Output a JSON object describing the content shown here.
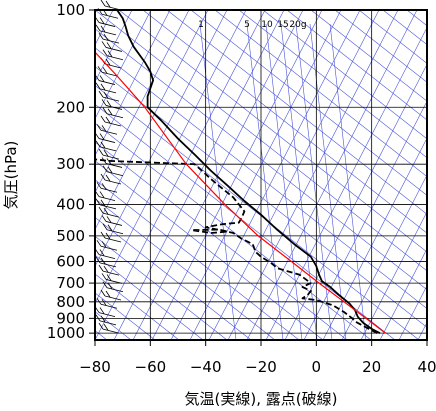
{
  "chart_data": {
    "type": "line",
    "title": "",
    "xlabel": "気温(実線), 露点(破線)",
    "ylabel": "気圧(hPa)",
    "xlim": [
      -80,
      40
    ],
    "ylim": [
      1050,
      100
    ],
    "y_scale": "log",
    "grid": true,
    "x_ticks": [
      -80,
      -60,
      -40,
      -20,
      0,
      20,
      40
    ],
    "y_ticks": [
      100,
      200,
      300,
      400,
      500,
      600,
      700,
      800,
      900,
      1000
    ],
    "mixing_ratio_labels": [
      {
        "text": "1",
        "value": 1
      },
      {
        "text": "5",
        "value": 5
      },
      {
        "text": "10",
        "value": 10
      },
      {
        "text": "15",
        "value": 15
      },
      {
        "text": "20g",
        "value": 20
      }
    ],
    "series": [
      {
        "name": "",
        "style": "solid",
        "color": "#000000",
        "points": [
          [
            23,
            1000
          ],
          [
            20,
            970
          ],
          [
            17,
            930
          ],
          [
            15,
            890
          ],
          [
            14,
            850
          ],
          [
            12,
            810
          ],
          [
            8,
            760
          ],
          [
            5,
            720
          ],
          [
            2,
            690
          ],
          [
            1,
            660
          ],
          [
            0,
            620
          ],
          [
            -2,
            580
          ],
          [
            -8,
            530
          ],
          [
            -14,
            480
          ],
          [
            -20,
            430
          ],
          [
            -26,
            390
          ],
          [
            -32,
            350
          ],
          [
            -38,
            315
          ],
          [
            -44,
            280
          ],
          [
            -50,
            250
          ],
          [
            -56,
            220
          ],
          [
            -61,
            200
          ],
          [
            -61,
            185
          ],
          [
            -60,
            175
          ],
          [
            -59,
            165
          ],
          [
            -60,
            155
          ],
          [
            -62,
            145
          ],
          [
            -66,
            130
          ],
          [
            -68,
            120
          ],
          [
            -69,
            112
          ],
          [
            -70,
            106
          ],
          [
            -72,
            100
          ]
        ]
      },
      {
        "name": "",
        "style": "dashed",
        "color": "#000000",
        "points": [
          [
            22,
            1000
          ],
          [
            18,
            960
          ],
          [
            14,
            920
          ],
          [
            13,
            900
          ],
          [
            10,
            860
          ],
          [
            6,
            820
          ],
          [
            0,
            790
          ],
          [
            -5,
            780
          ],
          [
            -3,
            760
          ],
          [
            -2,
            740
          ],
          [
            -5,
            720
          ],
          [
            -2,
            700
          ],
          [
            -6,
            660
          ],
          [
            -14,
            630
          ],
          [
            -16,
            610
          ],
          [
            -20,
            580
          ],
          [
            -22,
            560
          ],
          [
            -23,
            530
          ],
          [
            -27,
            510
          ],
          [
            -30,
            490
          ],
          [
            -35,
            478
          ],
          [
            -45,
            480
          ],
          [
            -38,
            490
          ],
          [
            -32,
            485
          ],
          [
            -40,
            470
          ],
          [
            -34,
            460
          ],
          [
            -28,
            455
          ],
          [
            -27,
            440
          ],
          [
            -26,
            420
          ],
          [
            -30,
            380
          ],
          [
            -37,
            340
          ],
          [
            -44,
            300
          ],
          [
            -75,
            293
          ],
          [
            -80,
            290
          ]
        ]
      },
      {
        "name": "",
        "style": "solid",
        "color": "#ff0000",
        "points": [
          [
            25,
            1000
          ],
          [
            18,
            900
          ],
          [
            10,
            800
          ],
          [
            1,
            700
          ],
          [
            -9,
            600
          ],
          [
            -21,
            500
          ],
          [
            -33,
            400
          ],
          [
            -47,
            300
          ],
          [
            -62,
            200
          ],
          [
            -72,
            160
          ],
          [
            -80,
            135
          ]
        ]
      }
    ],
    "wind_barbs": {
      "count": 40,
      "pressure_range": [
        1000,
        100
      ]
    }
  }
}
